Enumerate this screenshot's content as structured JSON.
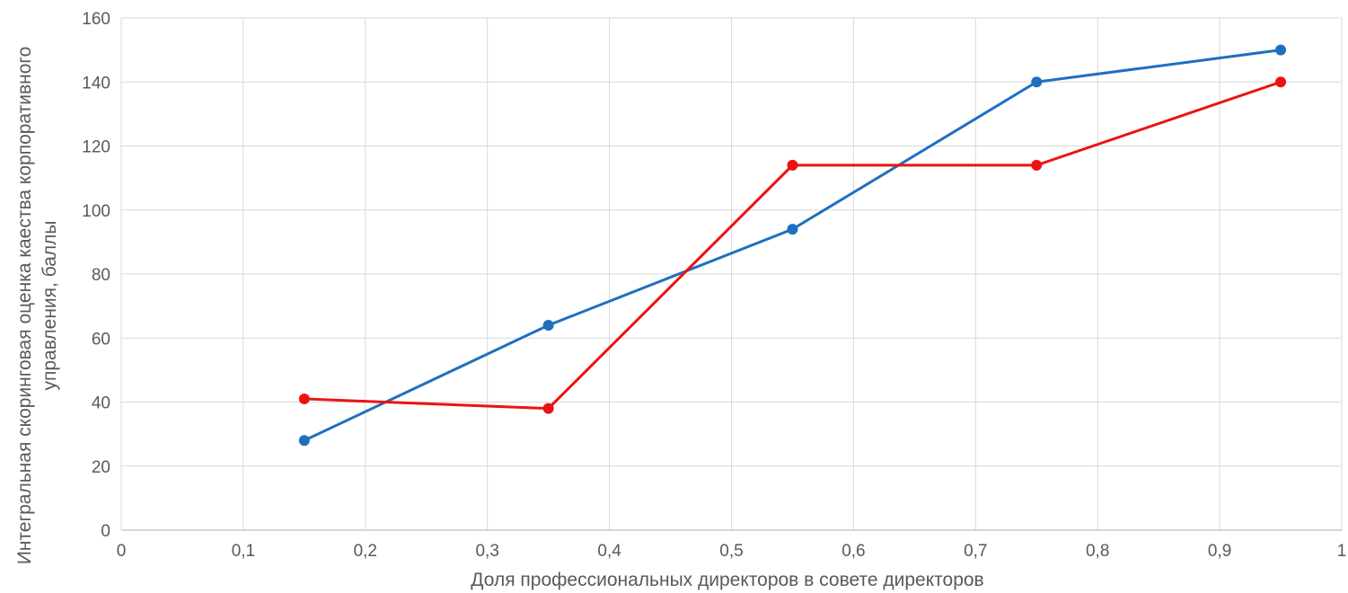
{
  "chart_data": {
    "type": "line",
    "title": "",
    "xlabel": "Доля профессиональных директоров в совете директоров",
    "ylabel_lines": [
      "Интегральная скоринговая оценка каества корпоративного",
      "управления, баллы"
    ],
    "xlim": [
      0,
      1
    ],
    "ylim": [
      0,
      160
    ],
    "x_ticks": [
      0,
      0.1,
      0.2,
      0.3,
      0.4,
      0.5,
      0.6,
      0.7,
      0.8,
      0.9,
      1
    ],
    "x_tick_labels": [
      "0",
      "0,1",
      "0,2",
      "0,3",
      "0,4",
      "0,5",
      "0,6",
      "0,7",
      "0,8",
      "0,9",
      "1"
    ],
    "y_ticks": [
      0,
      20,
      40,
      60,
      80,
      100,
      120,
      140,
      160
    ],
    "y_tick_labels": [
      "0",
      "20",
      "40",
      "60",
      "80",
      "100",
      "120",
      "140",
      "160"
    ],
    "grid": true,
    "legend": "none",
    "series": [
      {
        "color": "#1f6fc0",
        "x": [
          0.15,
          0.35,
          0.55,
          0.75,
          0.95
        ],
        "y": [
          28,
          64,
          94,
          140,
          150
        ]
      },
      {
        "color": "#ee1111",
        "x": [
          0.15,
          0.35,
          0.55,
          0.75,
          0.95
        ],
        "y": [
          41,
          38,
          114,
          114,
          140
        ]
      }
    ]
  }
}
